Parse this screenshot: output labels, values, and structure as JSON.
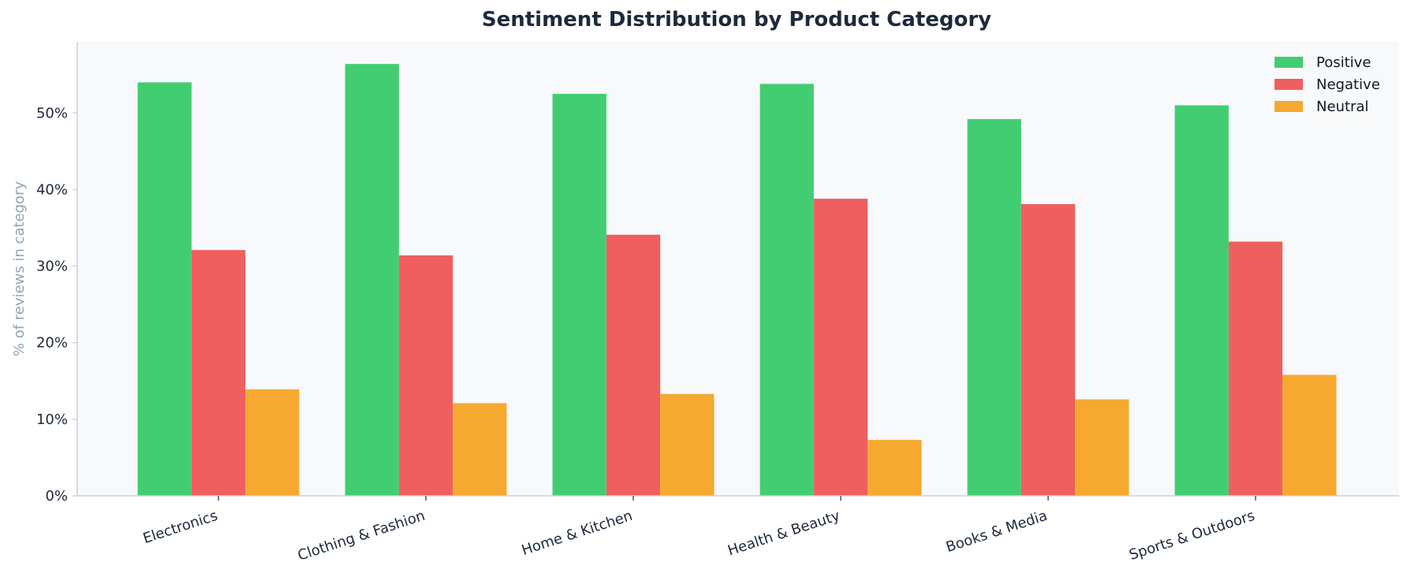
{
  "chart_data": {
    "type": "bar",
    "title": "Sentiment Distribution by Product Category",
    "xlabel": "",
    "ylabel": "% of reviews in category",
    "categories": [
      "Electronics",
      "Clothing & Fashion",
      "Home & Kitchen",
      "Health & Beauty",
      "Books & Media",
      "Sports & Outdoors"
    ],
    "series": [
      {
        "name": "Positive",
        "color": "#43cd73",
        "values": [
          54.0,
          56.4,
          52.5,
          53.8,
          49.2,
          51.0
        ]
      },
      {
        "name": "Negative",
        "color": "#ef5f5f",
        "values": [
          32.1,
          31.4,
          34.1,
          38.8,
          38.1,
          33.2
        ]
      },
      {
        "name": "Neutral",
        "color": "#f5a931",
        "values": [
          13.9,
          12.1,
          13.3,
          7.3,
          12.6,
          15.8
        ]
      }
    ],
    "yticks": [
      "0%",
      "10%",
      "20%",
      "30%",
      "40%",
      "50%"
    ],
    "ylim": [
      0,
      59.3
    ],
    "legend_position": "top-right",
    "grid": false,
    "plot_background": "#f7f9fb",
    "axis_color": "#c8d3e1"
  }
}
